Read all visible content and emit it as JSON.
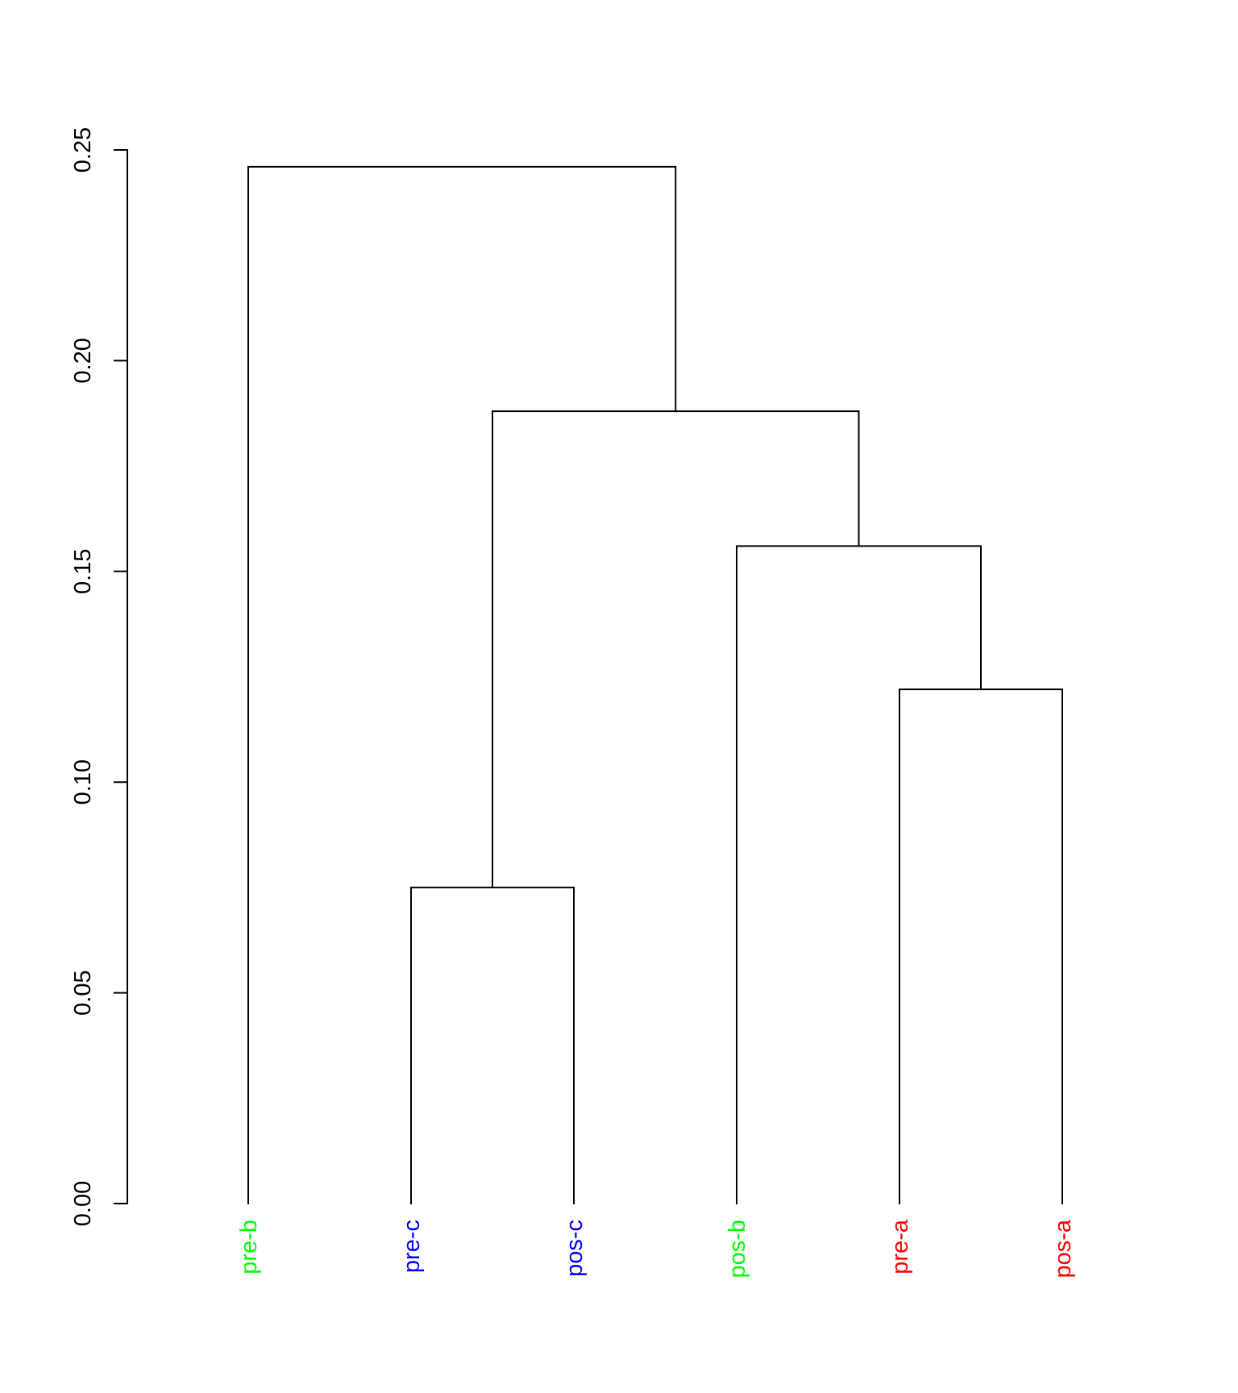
{
  "chart_data": {
    "type": "dendrogram",
    "ylim": [
      0,
      0.25
    ],
    "yticks": [
      "0.00",
      "0.05",
      "0.10",
      "0.15",
      "0.20",
      "0.25"
    ],
    "leaves": [
      {
        "label": "pre-b",
        "color": "#00ff00"
      },
      {
        "label": "pre-c",
        "color": "#0000ff"
      },
      {
        "label": "pos-c",
        "color": "#0000ff"
      },
      {
        "label": "pos-b",
        "color": "#00ff00"
      },
      {
        "label": "pre-a",
        "color": "#ff0000"
      },
      {
        "label": "pos-a",
        "color": "#ff0000"
      }
    ],
    "merges": [
      {
        "left": "L1",
        "right": "L2",
        "height": 0.075
      },
      {
        "left": "L4",
        "right": "L5",
        "height": 0.122
      },
      {
        "left": "L3",
        "right": "M1",
        "height": 0.156
      },
      {
        "left": "M0",
        "right": "M2",
        "height": 0.188
      },
      {
        "left": "L0",
        "right": "M3",
        "height": 0.246
      }
    ]
  }
}
